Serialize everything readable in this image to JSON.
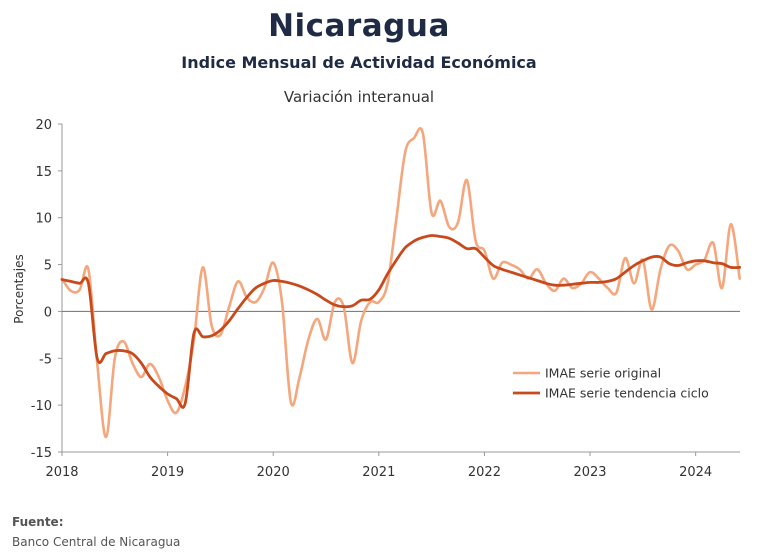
{
  "header": {
    "title": "Nicaragua",
    "subtitle": "Indice Mensual de  Actividad Económica",
    "subsubtitle": "Variación interanual"
  },
  "source": {
    "label": "Fuente:",
    "text": "Banco Central de Nicaragua"
  },
  "colors": {
    "original": "#f5a67c",
    "trend": "#c84a1c",
    "zero_line": "#808080",
    "axis": "#999999"
  },
  "chart_data": {
    "type": "line",
    "title": "Nicaragua",
    "subtitle": "Indice Mensual de  Actividad Económica",
    "ylabel": "Porcentajes",
    "xlabel": "",
    "ylim": [
      -15,
      20
    ],
    "yticks": [
      "20",
      "15",
      "10",
      "5",
      "0",
      "-5",
      "-10",
      "-15"
    ],
    "ytick_values": [
      20,
      15,
      10,
      5,
      0,
      -5,
      -10,
      -15
    ],
    "xlim": [
      2018.0,
      2024.42
    ],
    "xticks": [
      "2018",
      "2019",
      "2020",
      "2021",
      "2022",
      "2023",
      "2024"
    ],
    "xtick_values": [
      2018,
      2019,
      2020,
      2021,
      2022,
      2023,
      2024
    ],
    "grid": false,
    "legend_position": "lower-right",
    "series": [
      {
        "name": "IMAE serie original",
        "x": [
          2018.0,
          2018.083,
          2018.167,
          2018.25,
          2018.333,
          2018.417,
          2018.5,
          2018.583,
          2018.667,
          2018.75,
          2018.833,
          2018.917,
          2019.0,
          2019.083,
          2019.167,
          2019.25,
          2019.333,
          2019.417,
          2019.5,
          2019.583,
          2019.667,
          2019.75,
          2019.833,
          2019.917,
          2020.0,
          2020.083,
          2020.167,
          2020.25,
          2020.333,
          2020.417,
          2020.5,
          2020.583,
          2020.667,
          2020.75,
          2020.833,
          2020.917,
          2021.0,
          2021.083,
          2021.167,
          2021.25,
          2021.333,
          2021.417,
          2021.5,
          2021.583,
          2021.667,
          2021.75,
          2021.833,
          2021.917,
          2022.0,
          2022.083,
          2022.167,
          2022.25,
          2022.333,
          2022.417,
          2022.5,
          2022.583,
          2022.667,
          2022.75,
          2022.833,
          2022.917,
          2023.0,
          2023.083,
          2023.167,
          2023.25,
          2023.333,
          2023.417,
          2023.5,
          2023.583,
          2023.667,
          2023.75,
          2023.833,
          2023.917,
          2024.0,
          2024.083,
          2024.167,
          2024.25,
          2024.333,
          2024.417
        ],
        "values": [
          3.5,
          2.2,
          2.3,
          4.5,
          -5.5,
          -13.4,
          -5.0,
          -3.2,
          -5.5,
          -7.0,
          -5.6,
          -7.0,
          -9.5,
          -10.8,
          -8.0,
          -3.0,
          4.7,
          -1.5,
          -2.5,
          0.5,
          3.2,
          1.5,
          1.0,
          2.5,
          5.2,
          1.0,
          -9.7,
          -7.0,
          -3.0,
          -0.8,
          -3.0,
          1.0,
          0.5,
          -5.5,
          -1.0,
          1.0,
          1.0,
          3.0,
          10.0,
          17.0,
          18.5,
          19.0,
          10.5,
          11.8,
          9.0,
          9.5,
          14.0,
          7.5,
          6.5,
          3.5,
          5.2,
          5.0,
          4.5,
          3.5,
          4.5,
          3.0,
          2.2,
          3.5,
          2.5,
          3.0,
          4.2,
          3.5,
          2.5,
          2.0,
          5.7,
          3.0,
          5.5,
          0.2,
          4.5,
          7.0,
          6.5,
          4.5,
          5.0,
          5.5,
          7.3,
          2.5,
          9.3,
          3.5
        ]
      },
      {
        "name": "IMAE serie  tendencia ciclo",
        "x": [
          2018.0,
          2018.083,
          2018.167,
          2018.25,
          2018.333,
          2018.417,
          2018.5,
          2018.583,
          2018.667,
          2018.75,
          2018.833,
          2018.917,
          2019.0,
          2019.083,
          2019.167,
          2019.25,
          2019.333,
          2019.417,
          2019.5,
          2019.583,
          2019.667,
          2019.75,
          2019.833,
          2019.917,
          2020.0,
          2020.083,
          2020.167,
          2020.25,
          2020.333,
          2020.417,
          2020.5,
          2020.583,
          2020.667,
          2020.75,
          2020.833,
          2020.917,
          2021.0,
          2021.083,
          2021.167,
          2021.25,
          2021.333,
          2021.417,
          2021.5,
          2021.583,
          2021.667,
          2021.75,
          2021.833,
          2021.917,
          2022.0,
          2022.083,
          2022.167,
          2022.25,
          2022.333,
          2022.417,
          2022.5,
          2022.583,
          2022.667,
          2022.75,
          2022.833,
          2022.917,
          2023.0,
          2023.083,
          2023.167,
          2023.25,
          2023.333,
          2023.417,
          2023.5,
          2023.583,
          2023.667,
          2023.75,
          2023.833,
          2023.917,
          2024.0,
          2024.083,
          2024.167,
          2024.25,
          2024.333,
          2024.417
        ],
        "values": [
          3.4,
          3.2,
          3.0,
          3.0,
          -5.0,
          -4.5,
          -4.2,
          -4.2,
          -4.5,
          -5.5,
          -7.0,
          -8.0,
          -8.8,
          -9.3,
          -9.8,
          -2.3,
          -2.7,
          -2.6,
          -2.0,
          -1.0,
          0.3,
          1.5,
          2.5,
          3.0,
          3.3,
          3.2,
          3.0,
          2.7,
          2.3,
          1.8,
          1.2,
          0.7,
          0.5,
          0.6,
          1.2,
          1.3,
          2.3,
          4.0,
          5.5,
          6.8,
          7.5,
          7.9,
          8.1,
          8.0,
          7.8,
          7.3,
          6.7,
          6.7,
          5.8,
          4.9,
          4.5,
          4.2,
          3.9,
          3.6,
          3.3,
          3.0,
          2.8,
          2.8,
          2.9,
          3.0,
          3.1,
          3.1,
          3.2,
          3.5,
          4.2,
          4.9,
          5.4,
          5.8,
          5.8,
          5.1,
          4.9,
          5.2,
          5.4,
          5.4,
          5.2,
          5.1,
          4.7,
          4.7
        ]
      }
    ]
  }
}
